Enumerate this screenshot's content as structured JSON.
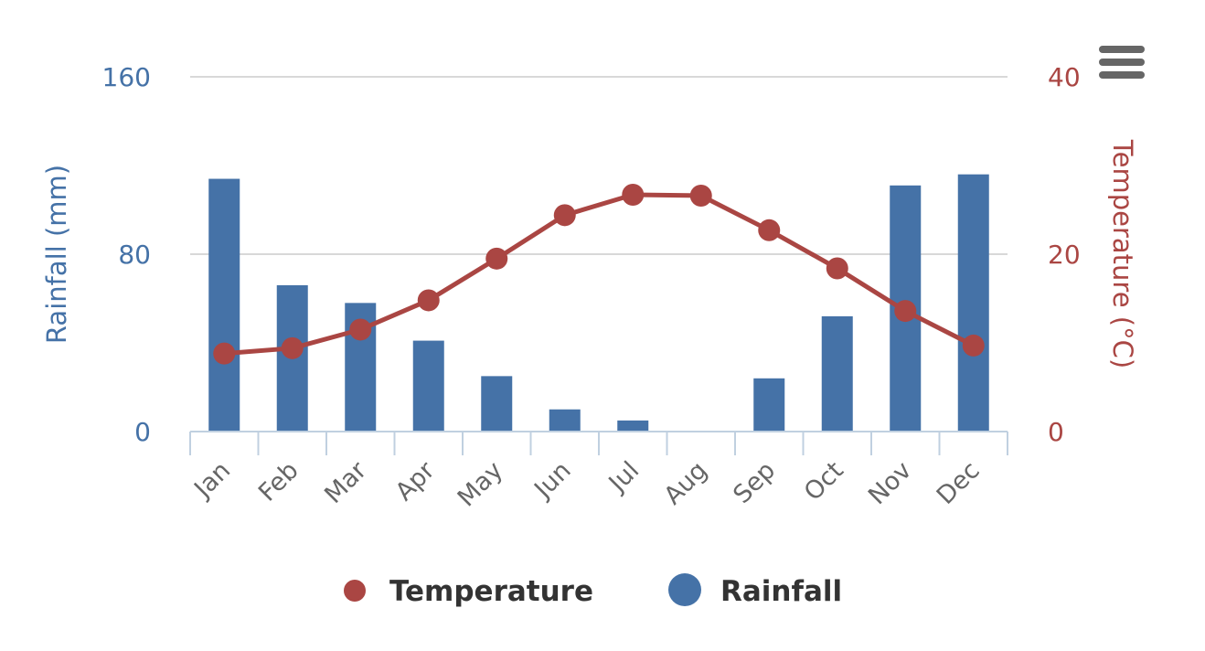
{
  "chart_data": {
    "type": "bar+line",
    "categories": [
      "Jan",
      "Feb",
      "Mar",
      "Apr",
      "May",
      "Jun",
      "Jul",
      "Aug",
      "Sep",
      "Oct",
      "Nov",
      "Dec"
    ],
    "series": [
      {
        "name": "Temperature",
        "type": "line",
        "axis": "right",
        "color": "#AA4643",
        "values": [
          8.8,
          9.4,
          11.5,
          14.8,
          19.5,
          24.4,
          26.7,
          26.6,
          22.7,
          18.4,
          13.6,
          9.7
        ]
      },
      {
        "name": "Rainfall",
        "type": "bar",
        "axis": "left",
        "color": "#4572A7",
        "values": [
          114,
          66,
          58,
          41,
          25,
          10,
          5,
          0,
          24,
          52,
          111,
          116
        ]
      }
    ],
    "y_left": {
      "label": "Rainfall (mm)",
      "ticks": [
        "0",
        "80",
        "160"
      ],
      "range": [
        0,
        160
      ],
      "color": "#4572A7"
    },
    "y_right": {
      "label": "Temperature (°C)",
      "ticks": [
        "0",
        "20",
        "40"
      ],
      "range": [
        0,
        40
      ],
      "color": "#AA4643"
    },
    "grid": true,
    "legend": "bottom-center"
  },
  "menu_icon": "hamburger-menu-icon"
}
